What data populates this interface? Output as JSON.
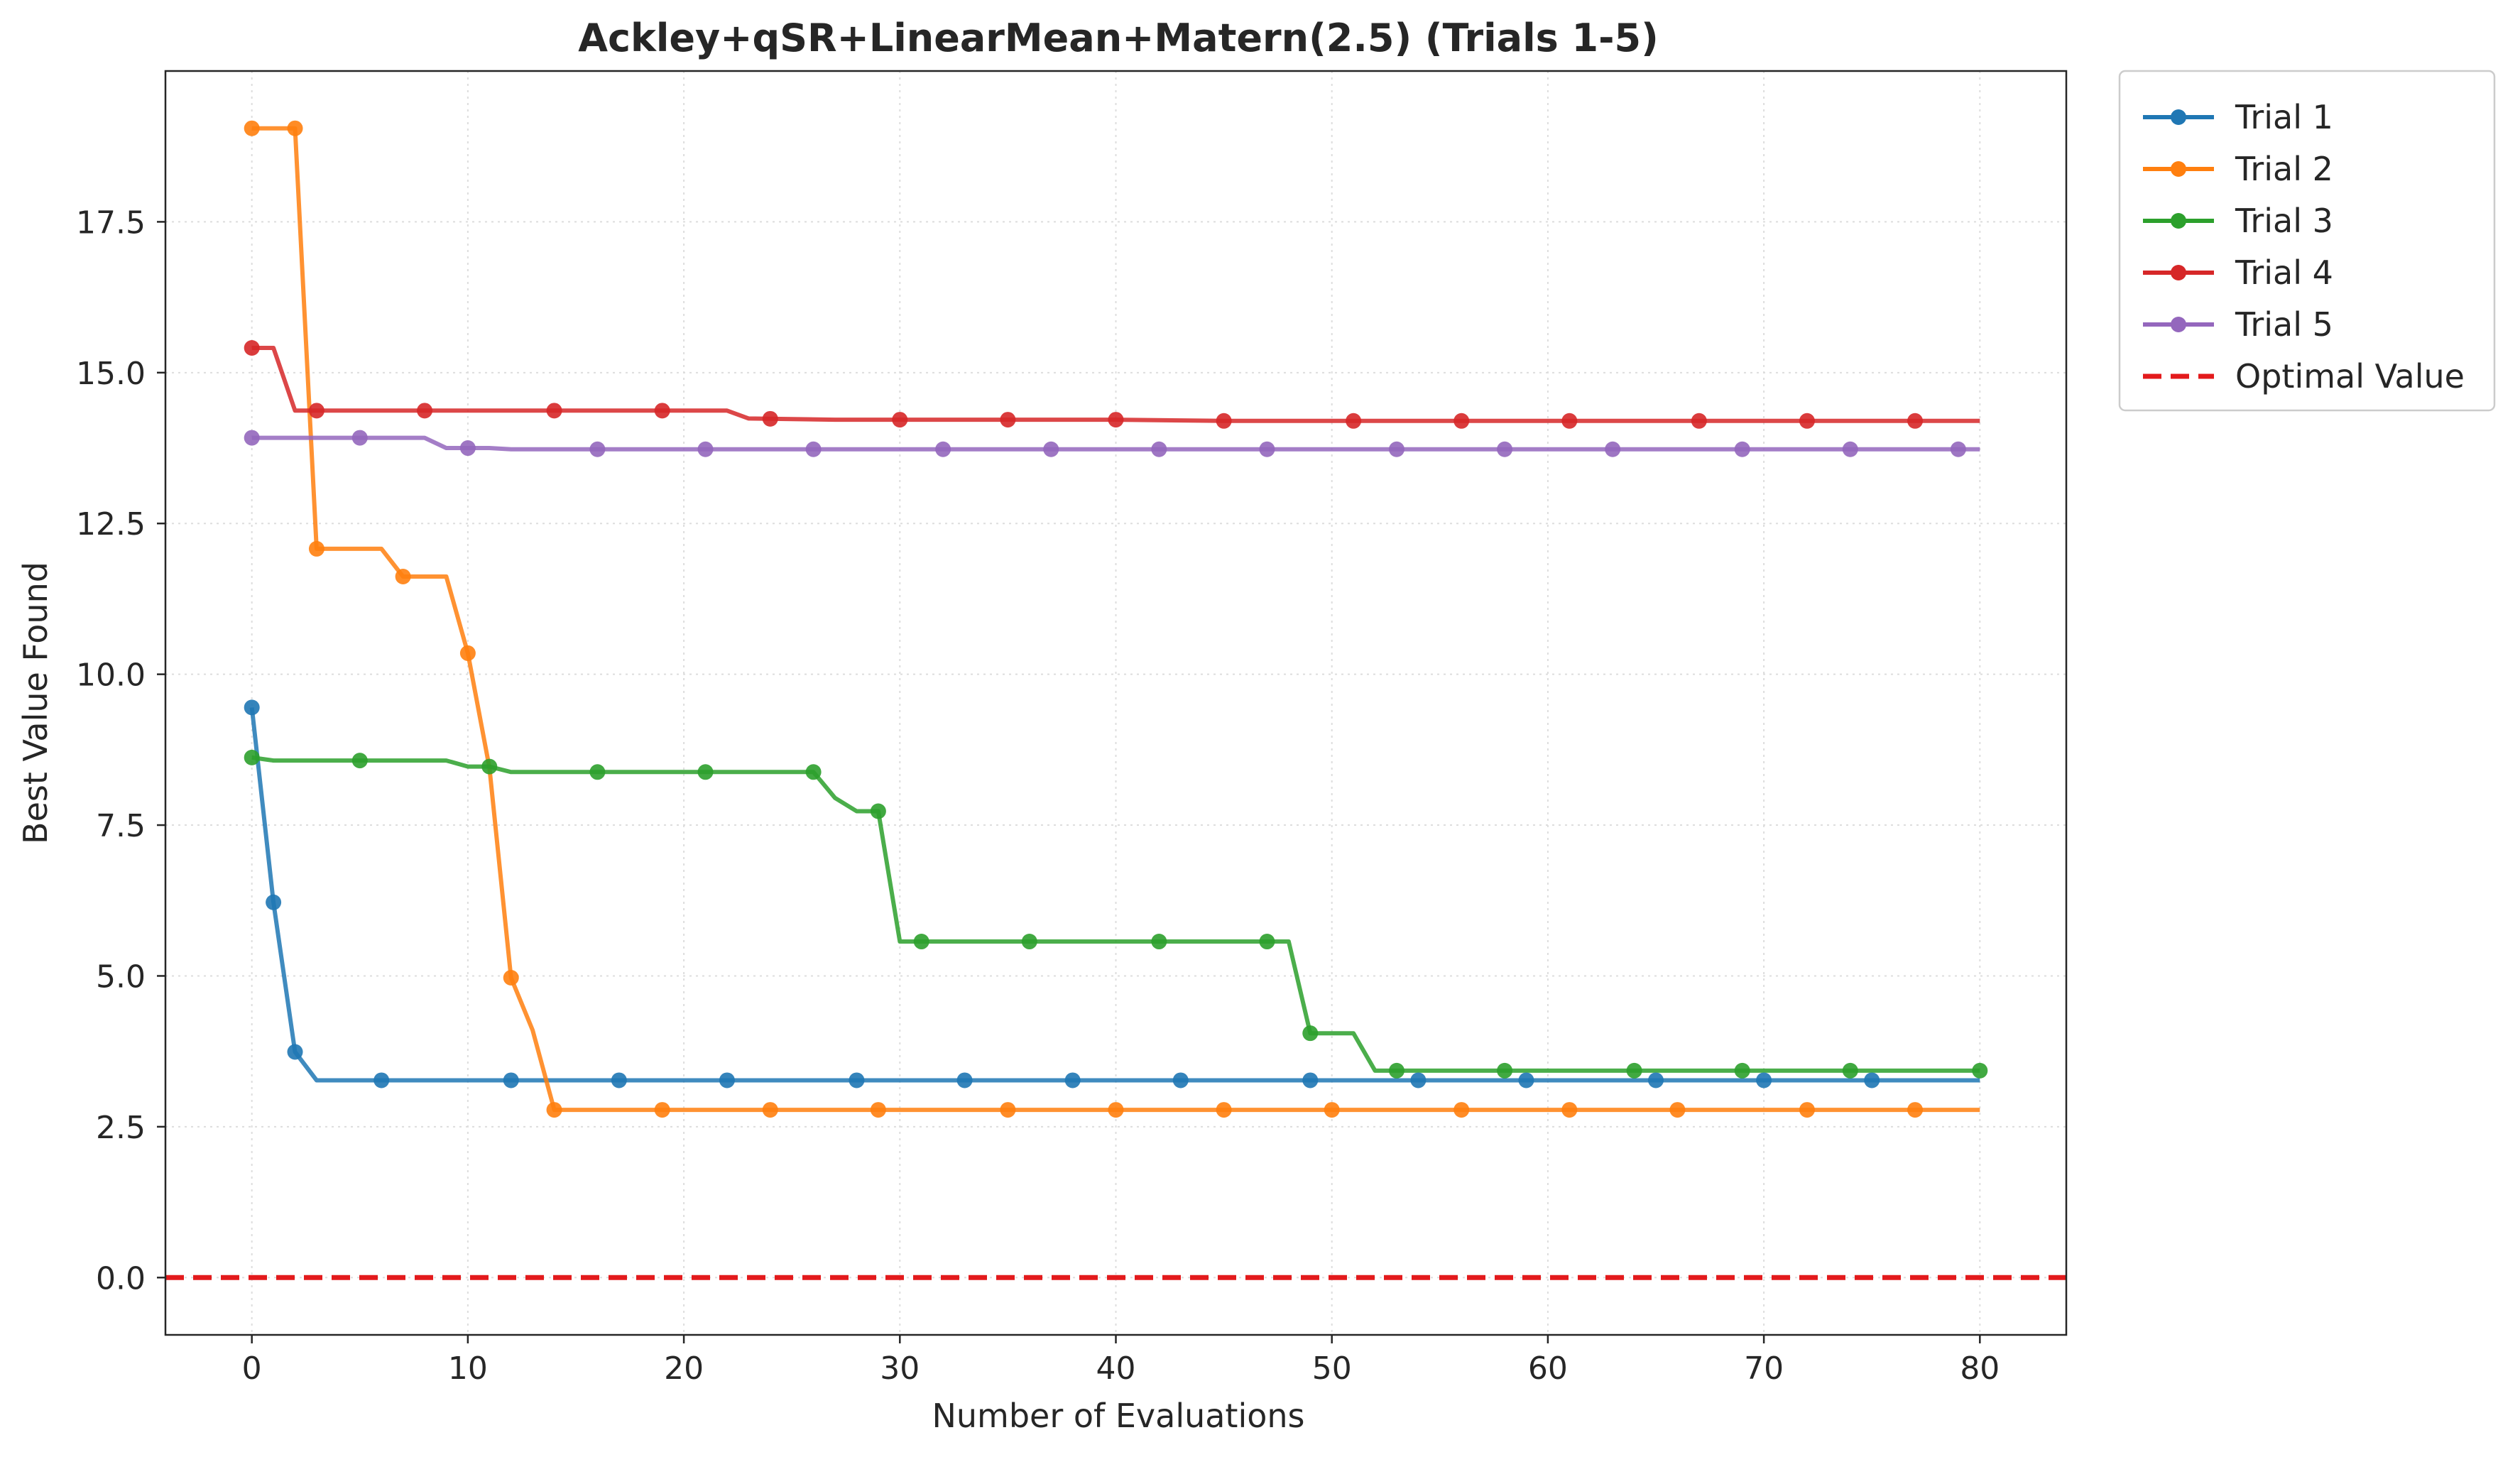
{
  "chart_data": {
    "type": "line",
    "title": "Ackley+qSR+LinearMean+Matern(2.5) (Trials 1-5)",
    "xlabel": "Number of Evaluations",
    "ylabel": "Best Value Found",
    "xlim": [
      -4,
      84
    ],
    "ylim": [
      -0.95,
      20.0
    ],
    "xticks": [
      0,
      10,
      20,
      30,
      40,
      50,
      60,
      70,
      80
    ],
    "xtick_labels": [
      "0",
      "10",
      "20",
      "30",
      "40",
      "50",
      "60",
      "70",
      "80"
    ],
    "yticks": [
      0.0,
      2.5,
      5.0,
      7.5,
      10.0,
      12.5,
      15.0,
      17.5
    ],
    "ytick_labels": [
      "0.0",
      "2.5",
      "5.0",
      "7.5",
      "10.0",
      "12.5",
      "15.0",
      "17.5"
    ],
    "grid": true,
    "legend_position": "outside-top-right",
    "series": [
      {
        "name": "Trial 1",
        "color": "#1f77b4",
        "points": [
          [
            0,
            9.45
          ],
          [
            1,
            6.22
          ],
          [
            2,
            3.74
          ],
          [
            3,
            3.27
          ],
          [
            80,
            3.27
          ]
        ],
        "markers": [
          0,
          1,
          2,
          6,
          12,
          17,
          22,
          28,
          33,
          38,
          43,
          49,
          54,
          59,
          65,
          70,
          75
        ]
      },
      {
        "name": "Trial 2",
        "color": "#ff7f0e",
        "points": [
          [
            0,
            19.05
          ],
          [
            2,
            19.05
          ],
          [
            3,
            12.08
          ],
          [
            6,
            12.08
          ],
          [
            7,
            11.62
          ],
          [
            9,
            11.62
          ],
          [
            10,
            10.35
          ],
          [
            11,
            8.45
          ],
          [
            12,
            4.97
          ],
          [
            13,
            4.1
          ],
          [
            14,
            2.78
          ],
          [
            80,
            2.78
          ]
        ],
        "markers": [
          0,
          2,
          3,
          7,
          10,
          12,
          14,
          19,
          24,
          29,
          35,
          40,
          45,
          50,
          56,
          61,
          66,
          72,
          77
        ]
      },
      {
        "name": "Trial 3",
        "color": "#2ca02c",
        "points": [
          [
            0,
            8.62
          ],
          [
            1,
            8.57
          ],
          [
            9,
            8.57
          ],
          [
            10,
            8.47
          ],
          [
            11,
            8.47
          ],
          [
            12,
            8.38
          ],
          [
            26,
            8.38
          ],
          [
            27,
            7.95
          ],
          [
            28,
            7.73
          ],
          [
            29,
            7.73
          ],
          [
            30,
            5.57
          ],
          [
            48,
            5.57
          ],
          [
            49,
            4.05
          ],
          [
            51,
            4.05
          ],
          [
            52,
            3.43
          ],
          [
            80,
            3.43
          ]
        ],
        "markers": [
          0,
          5,
          11,
          16,
          21,
          26,
          29,
          31,
          36,
          42,
          47,
          49,
          53,
          58,
          64,
          69,
          74,
          80
        ]
      },
      {
        "name": "Trial 4",
        "color": "#d62728",
        "points": [
          [
            0,
            15.41
          ],
          [
            1,
            15.41
          ],
          [
            2,
            14.37
          ],
          [
            22,
            14.37
          ],
          [
            23,
            14.24
          ],
          [
            27,
            14.22
          ],
          [
            40,
            14.22
          ],
          [
            45,
            14.2
          ],
          [
            80,
            14.2
          ]
        ],
        "markers": [
          0,
          3,
          8,
          14,
          19,
          24,
          30,
          35,
          40,
          45,
          51,
          56,
          61,
          67,
          72,
          77
        ]
      },
      {
        "name": "Trial 5",
        "color": "#9467bd",
        "points": [
          [
            0,
            13.92
          ],
          [
            8,
            13.92
          ],
          [
            9,
            13.75
          ],
          [
            11,
            13.75
          ],
          [
            12,
            13.73
          ],
          [
            80,
            13.73
          ]
        ],
        "markers": [
          0,
          5,
          10,
          16,
          21,
          26,
          32,
          37,
          42,
          47,
          53,
          58,
          63,
          69,
          74,
          79
        ]
      },
      {
        "name": "Optimal Value",
        "color": "#e31a1c",
        "style": "dashed",
        "hline": 0.0
      }
    ]
  }
}
